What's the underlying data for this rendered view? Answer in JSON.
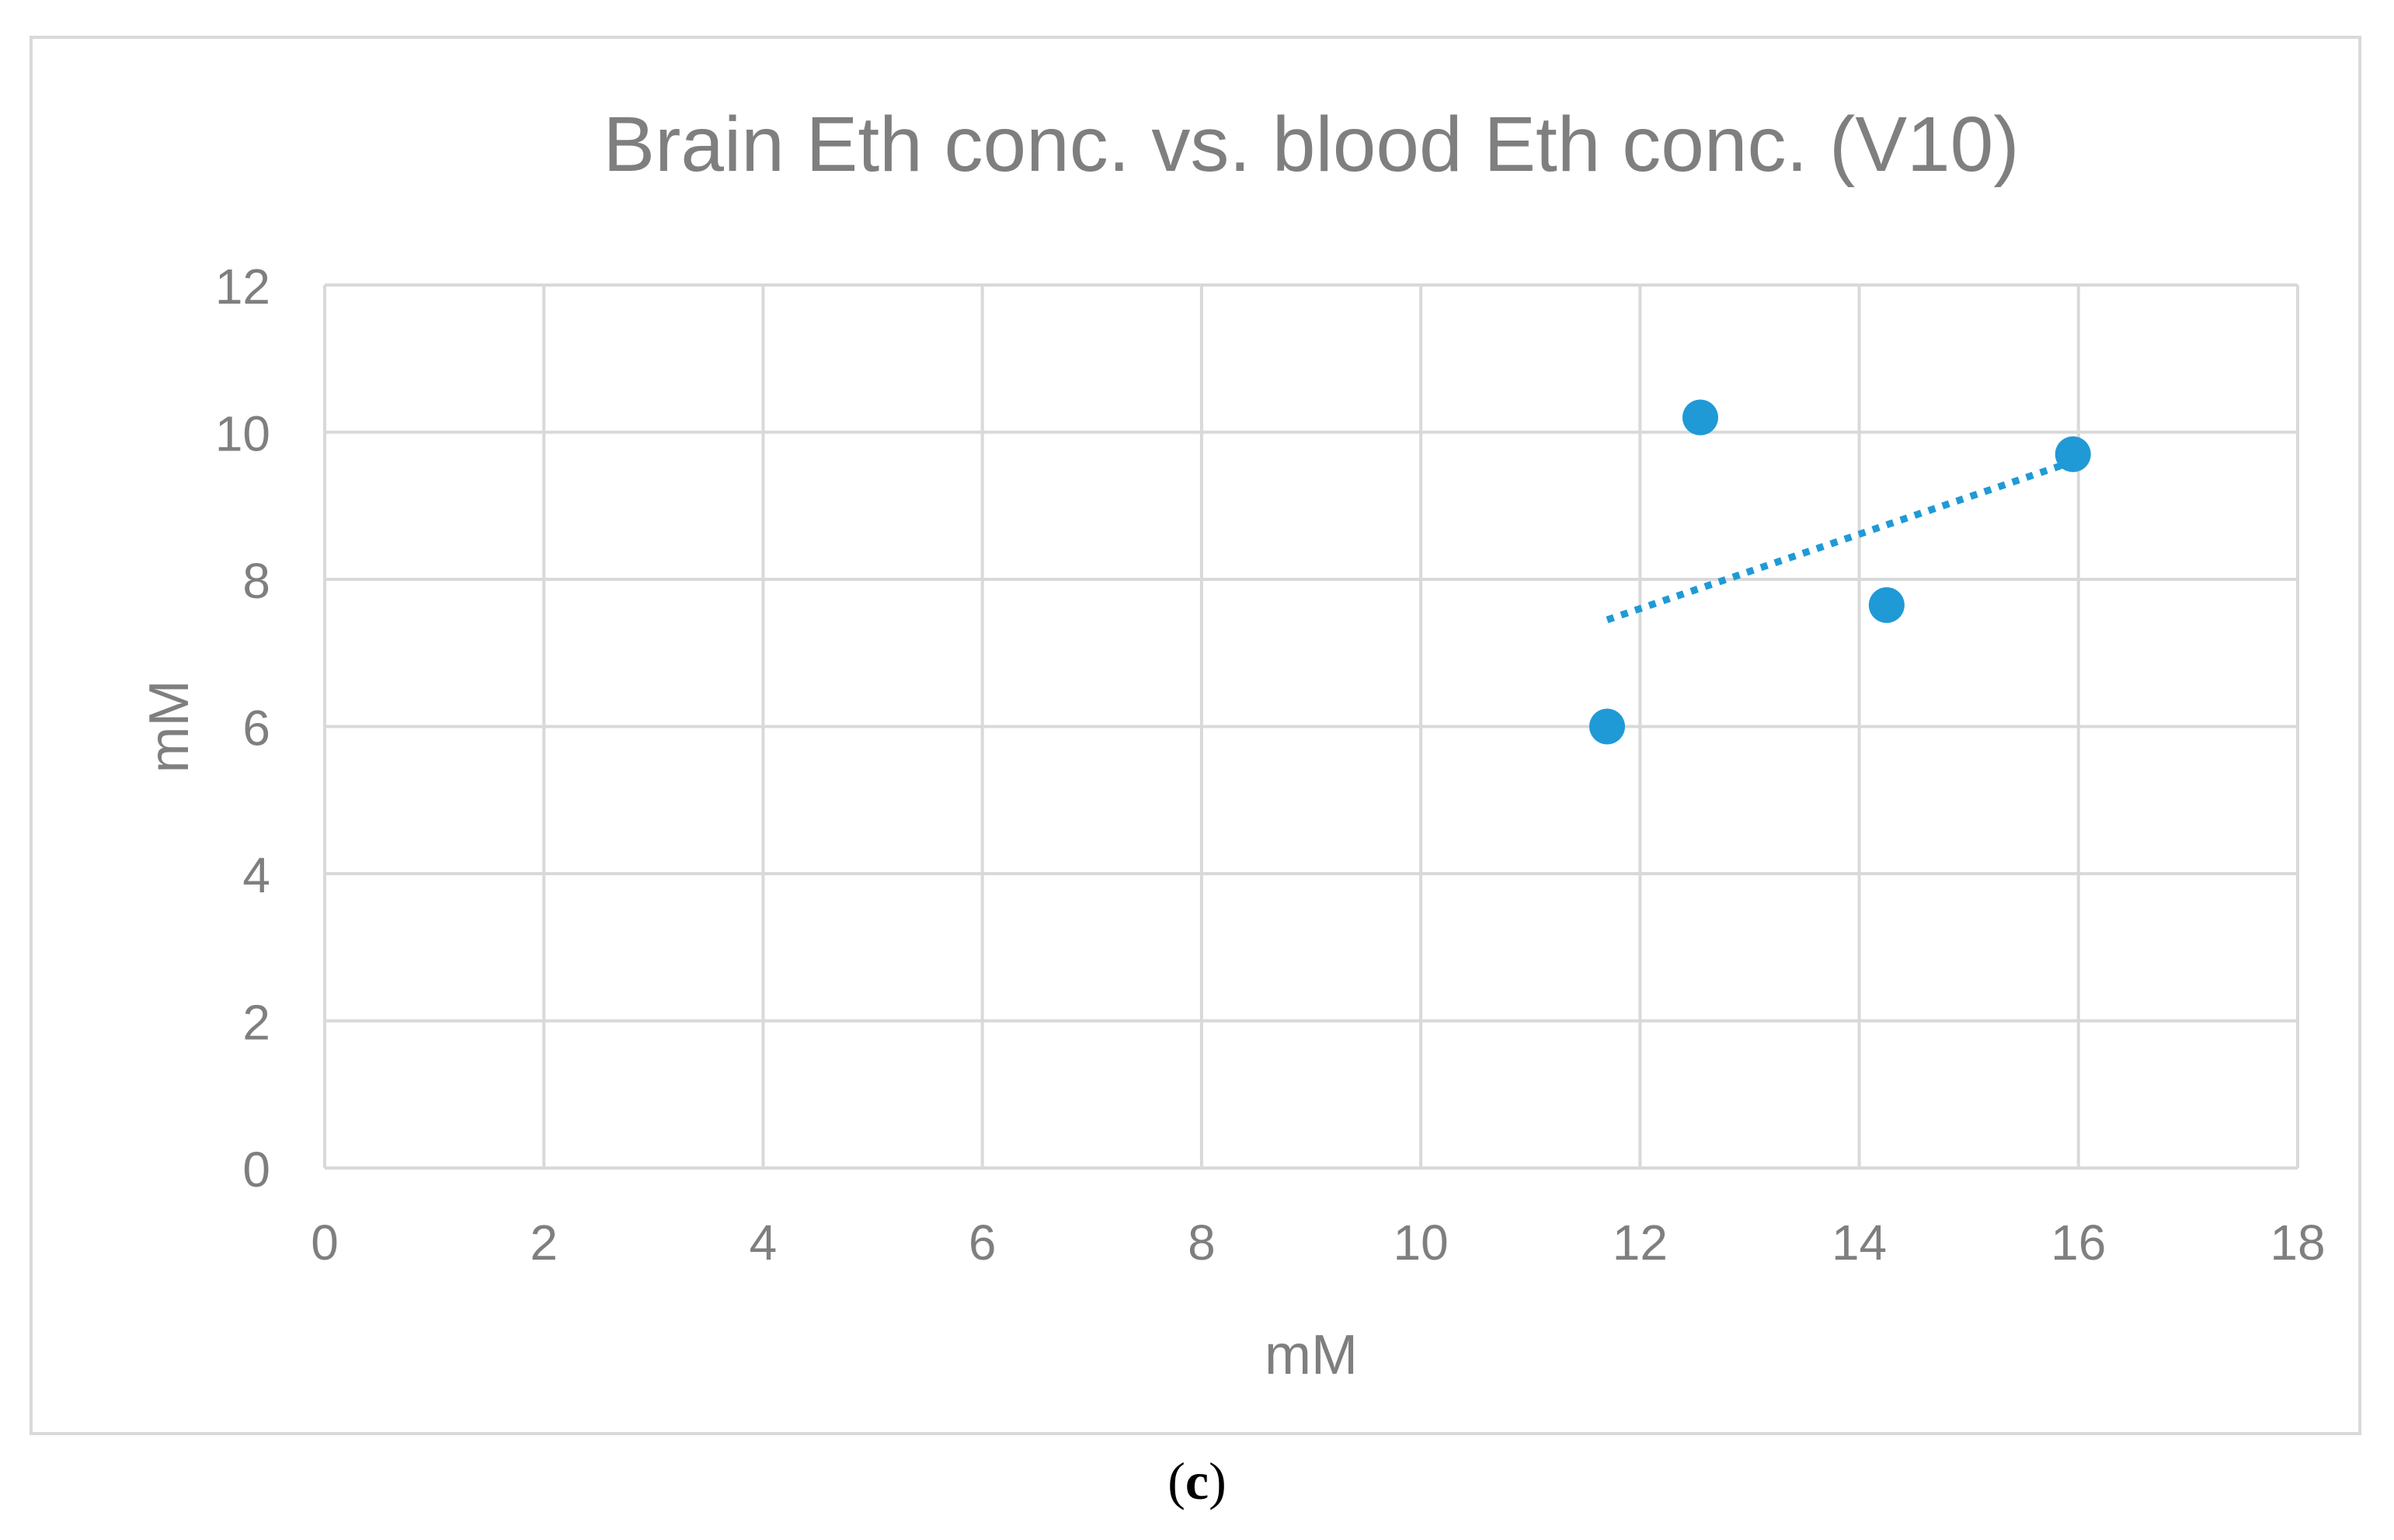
{
  "caption": {
    "open": "(",
    "letter": "c",
    "close": ")"
  },
  "chart_data": {
    "type": "scatter",
    "title": "Brain Eth conc. vs. blood Eth conc. (V10)",
    "xlabel": "mM",
    "ylabel": "mM",
    "xlim": [
      0,
      18
    ],
    "ylim": [
      0,
      12
    ],
    "x_ticks": [
      0,
      2,
      4,
      6,
      8,
      10,
      12,
      14,
      16,
      18
    ],
    "y_ticks": [
      0,
      2,
      4,
      6,
      8,
      10,
      12
    ],
    "grid": true,
    "legend": "none",
    "series": [
      {
        "color": "#1f9ad6",
        "points": [
          {
            "x": 11.7,
            "y": 6.0
          },
          {
            "x": 12.55,
            "y": 10.2
          },
          {
            "x": 14.25,
            "y": 7.65
          },
          {
            "x": 15.95,
            "y": 9.7
          }
        ]
      }
    ],
    "trendline": {
      "type": "linear",
      "style": "dotted",
      "color": "#1f9ad6",
      "x": [
        11.7,
        15.95
      ],
      "y": [
        7.45,
        9.6
      ]
    },
    "colors": {
      "grid": "#d9d9d9",
      "text": "#7f7f7f",
      "axis": "#bfbfbf"
    }
  }
}
